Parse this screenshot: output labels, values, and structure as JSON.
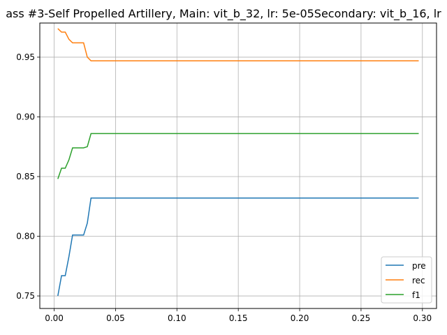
{
  "chart_data": {
    "type": "line",
    "title": "ass #3-Self Propelled Artillery, Main: vit_b_32, lr: 5e-05Secondary: vit_b_16, lr",
    "xlabel": "",
    "ylabel": "",
    "xlim": [
      -0.0117,
      0.3115
    ],
    "ylim": [
      0.7395,
      0.9786
    ],
    "xticks": [
      0.0,
      0.05,
      0.1,
      0.15,
      0.2,
      0.25,
      0.3
    ],
    "xtick_labels": [
      "0.00",
      "0.05",
      "0.10",
      "0.15",
      "0.20",
      "0.25",
      "0.30"
    ],
    "yticks": [
      0.75,
      0.8,
      0.85,
      0.9,
      0.95
    ],
    "ytick_labels": [
      "0.75",
      "0.80",
      "0.85",
      "0.90",
      "0.95"
    ],
    "grid": true,
    "legend_position": "lower right",
    "series": [
      {
        "name": "pre",
        "color": "#1f77b4",
        "x": [
          0.003,
          0.006,
          0.009,
          0.012,
          0.015,
          0.018,
          0.021,
          0.024,
          0.027,
          0.03,
          0.05,
          0.1,
          0.15,
          0.2,
          0.25,
          0.297
        ],
        "y": [
          0.75,
          0.767,
          0.767,
          0.783,
          0.801,
          0.801,
          0.801,
          0.801,
          0.811,
          0.832,
          0.832,
          0.832,
          0.832,
          0.832,
          0.832,
          0.832
        ]
      },
      {
        "name": "rec",
        "color": "#ff7f0e",
        "x": [
          0.003,
          0.006,
          0.009,
          0.012,
          0.015,
          0.018,
          0.021,
          0.024,
          0.027,
          0.03,
          0.05,
          0.1,
          0.15,
          0.2,
          0.25,
          0.297
        ],
        "y": [
          0.974,
          0.971,
          0.971,
          0.965,
          0.962,
          0.962,
          0.962,
          0.962,
          0.95,
          0.947,
          0.947,
          0.947,
          0.947,
          0.947,
          0.947,
          0.947
        ]
      },
      {
        "name": "f1",
        "color": "#2ca02c",
        "x": [
          0.003,
          0.006,
          0.009,
          0.012,
          0.015,
          0.018,
          0.021,
          0.024,
          0.027,
          0.03,
          0.05,
          0.1,
          0.15,
          0.2,
          0.25,
          0.297
        ],
        "y": [
          0.848,
          0.857,
          0.857,
          0.864,
          0.874,
          0.874,
          0.874,
          0.874,
          0.875,
          0.886,
          0.886,
          0.886,
          0.886,
          0.886,
          0.886,
          0.886
        ]
      }
    ]
  }
}
